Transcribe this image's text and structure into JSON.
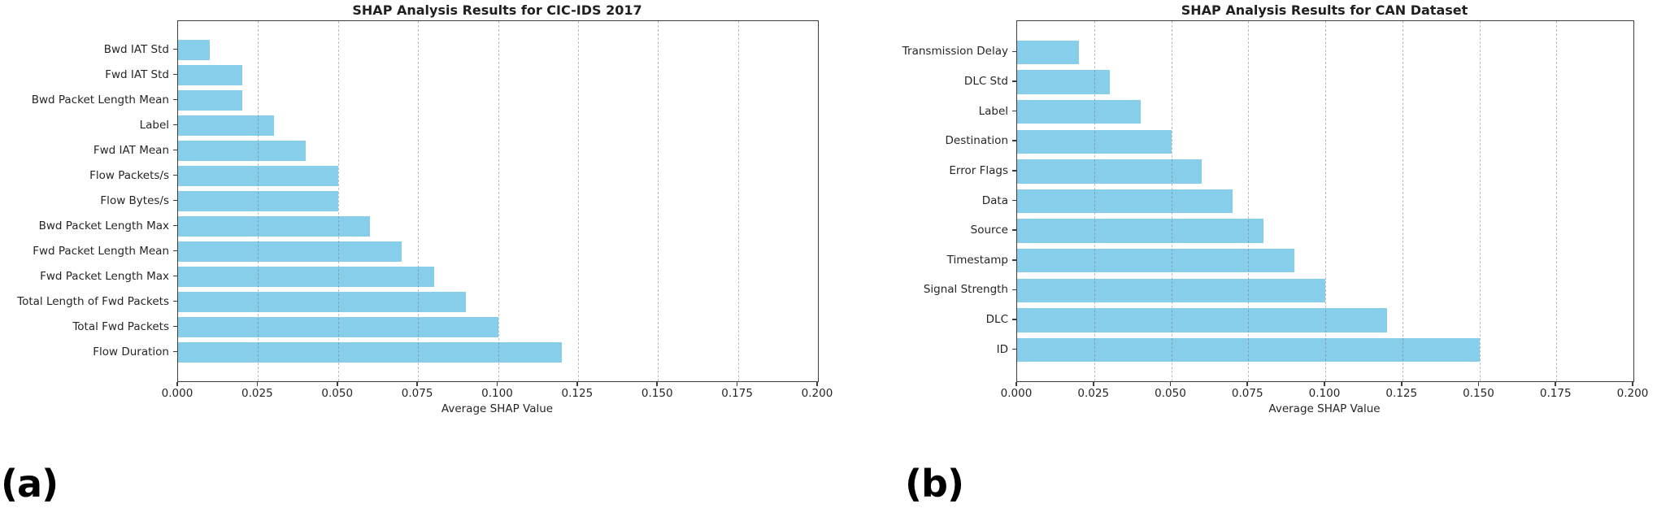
{
  "figure": {
    "panel_a_label": "(a)",
    "panel_b_label": "(b)"
  },
  "chart_data": [
    {
      "type": "bar",
      "orientation": "horizontal",
      "title": "SHAP Analysis Results for CIC-IDS 2017",
      "xlabel": "Average SHAP Value",
      "categories": [
        "Bwd IAT Std",
        "Fwd IAT Std",
        "Bwd Packet Length Mean",
        "Label",
        "Fwd IAT Mean",
        "Flow Packets/s",
        "Flow Bytes/s",
        "Bwd Packet Length Max",
        "Fwd Packet Length Mean",
        "Fwd Packet Length Max",
        "Total Length of Fwd Packets",
        "Total Fwd Packets",
        "Flow Duration"
      ],
      "values": [
        0.01,
        0.02,
        0.02,
        0.03,
        0.04,
        0.05,
        0.05,
        0.06,
        0.07,
        0.08,
        0.09,
        0.1,
        0.12
      ],
      "xlim": [
        0,
        0.2
      ],
      "xticks": [
        0.0,
        0.025,
        0.05,
        0.075,
        0.1,
        0.125,
        0.15,
        0.175,
        0.2
      ],
      "xtick_labels": [
        "0.000",
        "0.025",
        "0.050",
        "0.075",
        "0.100",
        "0.125",
        "0.150",
        "0.175",
        "0.200"
      ],
      "bar_color": "#87CEEB",
      "grid": true,
      "legend": "none"
    },
    {
      "type": "bar",
      "orientation": "horizontal",
      "title": "SHAP Analysis Results for CAN Dataset",
      "xlabel": "Average SHAP Value",
      "categories": [
        "Transmission Delay",
        "DLC Std",
        "Label",
        "Destination",
        "Error Flags",
        "Data",
        "Source",
        "Timestamp",
        "Signal Strength",
        "DLC",
        "ID"
      ],
      "values": [
        0.02,
        0.03,
        0.04,
        0.05,
        0.06,
        0.07,
        0.08,
        0.09,
        0.1,
        0.12,
        0.15
      ],
      "xlim": [
        0,
        0.2
      ],
      "xticks": [
        0.0,
        0.025,
        0.05,
        0.075,
        0.1,
        0.125,
        0.15,
        0.175,
        0.2
      ],
      "xtick_labels": [
        "0.000",
        "0.025",
        "0.050",
        "0.075",
        "0.100",
        "0.125",
        "0.150",
        "0.175",
        "0.200"
      ],
      "bar_color": "#87CEEB",
      "grid": true,
      "legend": "none"
    }
  ]
}
